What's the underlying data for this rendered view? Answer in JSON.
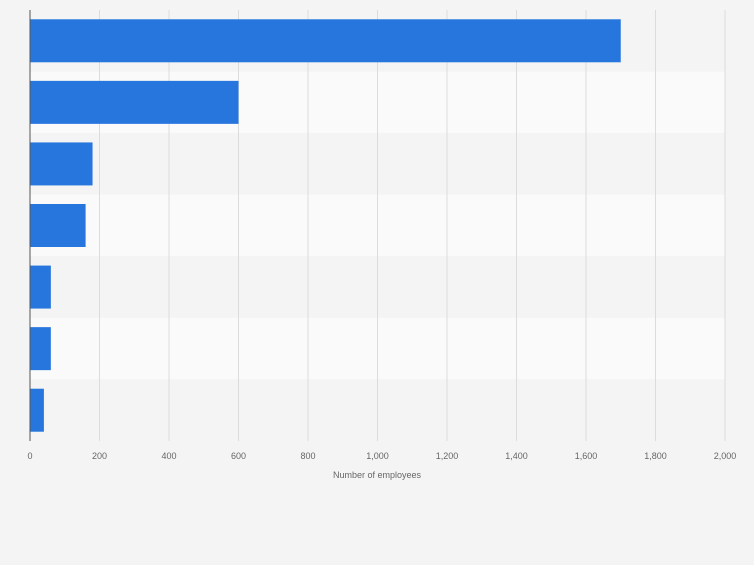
{
  "chart_data": {
    "type": "bar",
    "orientation": "horizontal",
    "categories": [
      "",
      "",
      "",
      "",
      "",
      "",
      ""
    ],
    "values": [
      1700,
      600,
      180,
      160,
      60,
      60,
      40
    ],
    "xlabel": "Number of employees",
    "ylabel": "",
    "xlim": [
      0,
      2000
    ],
    "ticks": [
      0,
      200,
      400,
      600,
      800,
      1000,
      1200,
      1400,
      1600,
      1800,
      2000
    ],
    "tick_labels": [
      "0",
      "200",
      "400",
      "600",
      "800",
      "1,000",
      "1,200",
      "1,400",
      "1,600",
      "1,800",
      "2,000"
    ],
    "grid": true,
    "legend": "none",
    "colors": {
      "bar": "#2776dd",
      "band_light": "#fafafa",
      "band_dark": "#f4f4f4",
      "grid": "#dcdcdc",
      "axis": "#555555",
      "text": "#666666"
    }
  }
}
